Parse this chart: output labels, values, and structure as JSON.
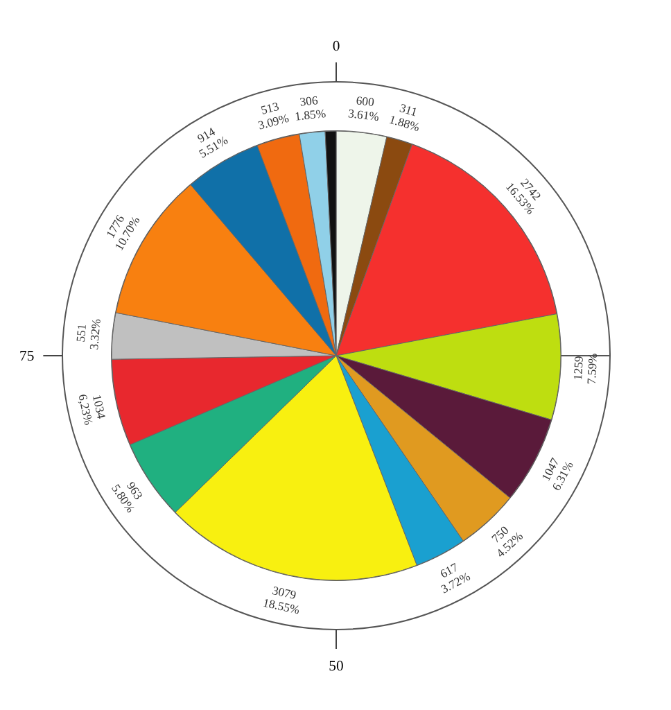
{
  "chart_data": {
    "type": "pie",
    "categories": [
      null,
      null,
      null,
      null,
      null,
      null,
      null,
      null,
      null,
      null,
      null,
      null,
      null,
      null,
      null,
      null
    ],
    "values": [
      600,
      311,
      2742,
      1259,
      1047,
      750,
      617,
      3079,
      963,
      1034,
      551,
      1776,
      914,
      513,
      306,
      130
    ],
    "colors": [
      "#eef5ea",
      "#8b4a10",
      "#f5302e",
      "#bede10",
      "#5a1a3a",
      "#e09a20",
      "#1aa0d0",
      "#f8f010",
      "#20b080",
      "#e8282e",
      "#c0c0c0",
      "#f88010",
      "#1070a8",
      "#f06a10",
      "#90d0e8",
      "#111111"
    ],
    "value_labels": [
      "600\n3.61%",
      "311\n1.88%",
      "2742\n16.53%",
      "1259\n7.59%",
      "1047\n6.31%",
      "750\n4.52%",
      "617\n3.72%",
      "3079\n18.55%",
      "963\n5.80%",
      "1034\n6,23%",
      "551\n3.32%",
      "1776\n10.70%",
      "914\n5.51%",
      "513\n3.09%",
      "306\n1.85%",
      null
    ],
    "annotations": [
      "0",
      "50",
      "75"
    ]
  }
}
